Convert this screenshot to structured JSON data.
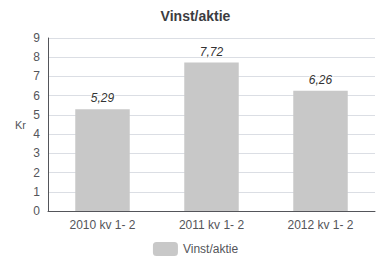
{
  "chart_data": {
    "type": "bar",
    "title": "Vinst/aktie",
    "categories": [
      "2010 kv 1- 2",
      "2011 kv 1- 2",
      "2012 kv 1- 2"
    ],
    "series": [
      {
        "name": "Vinst/aktie",
        "color": "#c8c8c8",
        "values": [
          5.29,
          7.72,
          6.26
        ],
        "value_labels": [
          "5,29",
          "7,72",
          "6,26"
        ]
      }
    ],
    "data_labels": true,
    "ylabel": "Kr",
    "ylim": [
      0,
      9
    ],
    "yticks": [
      0,
      1,
      2,
      3,
      4,
      5,
      6,
      7,
      8,
      9
    ],
    "grid": true,
    "legend": "bottom"
  }
}
